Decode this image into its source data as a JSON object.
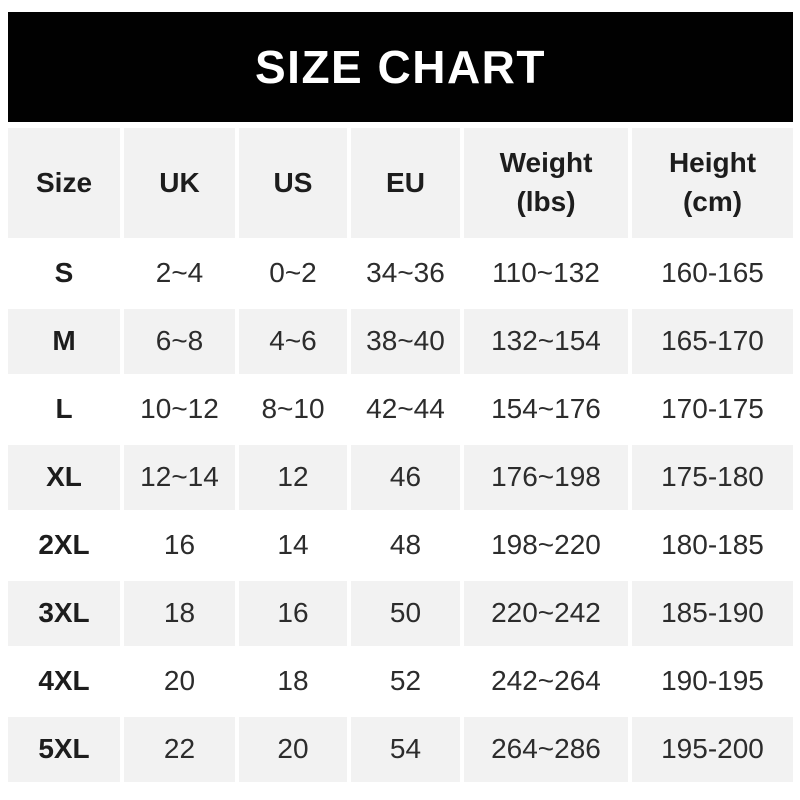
{
  "banner": {
    "title": "SIZE CHART",
    "bg_color": "#010101",
    "text_color": "#ffffff"
  },
  "colors": {
    "stripe": "#f2f2f2",
    "row_white": "#ffffff",
    "text": "#2c2c2c",
    "text_bold": "#1d1d1d"
  },
  "header": {
    "cells": [
      {
        "label": "Size",
        "sub": ""
      },
      {
        "label": "UK",
        "sub": ""
      },
      {
        "label": "US",
        "sub": ""
      },
      {
        "label": "EU",
        "sub": ""
      },
      {
        "label": "Weight",
        "sub": "(lbs)"
      },
      {
        "label": "Height",
        "sub": "(cm)"
      }
    ]
  },
  "chart_data": {
    "type": "table",
    "title": "SIZE CHART",
    "columns": [
      "Size",
      "UK",
      "US",
      "EU",
      "Weight (lbs)",
      "Height (cm)"
    ],
    "rows": [
      [
        "S",
        "2~4",
        "0~2",
        "34~36",
        "110~132",
        "160-165"
      ],
      [
        "M",
        "6~8",
        "4~6",
        "38~40",
        "132~154",
        "165-170"
      ],
      [
        "L",
        "10~12",
        "8~10",
        "42~44",
        "154~176",
        "170-175"
      ],
      [
        "XL",
        "12~14",
        "12",
        "46",
        "176~198",
        "175-180"
      ],
      [
        "2XL",
        "16",
        "14",
        "48",
        "198~220",
        "180-185"
      ],
      [
        "3XL",
        "18",
        "16",
        "50",
        "220~242",
        "185-190"
      ],
      [
        "4XL",
        "20",
        "18",
        "52",
        "242~264",
        "190-195"
      ],
      [
        "5XL",
        "22",
        "20",
        "54",
        "264~286",
        "195-200"
      ]
    ],
    "layout": {
      "striped_rows": true,
      "stripe_color": "#f2f2f2",
      "gray_rows": [
        "header",
        "M",
        "XL",
        "3XL",
        "5XL"
      ],
      "grid": "white gaps between columns on gray rows"
    }
  }
}
